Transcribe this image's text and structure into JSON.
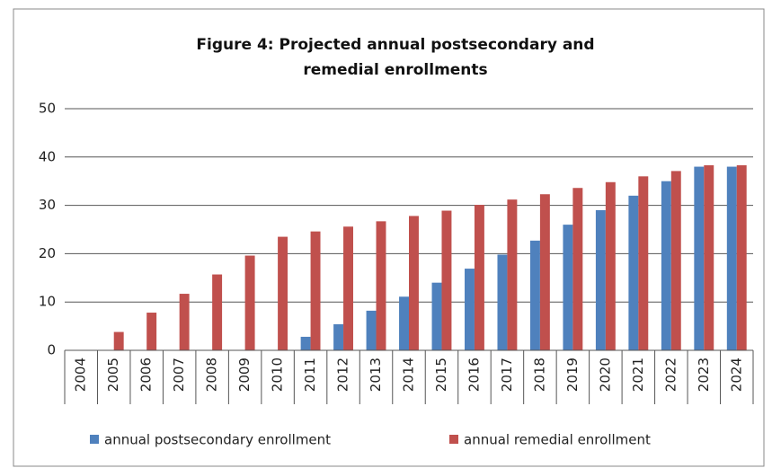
{
  "chart_data": {
    "type": "bar",
    "title": "Figure 4: Projected annual postsecondary and remedial enrollments",
    "categories": [
      "2004",
      "2005",
      "2006",
      "2007",
      "2008",
      "2009",
      "2010",
      "2011",
      "2012",
      "2013",
      "2014",
      "2015",
      "2016",
      "2017",
      "2018",
      "2019",
      "2020",
      "2021",
      "2022",
      "2023",
      "2024"
    ],
    "series": [
      {
        "name": "annual postsecondary enrollment",
        "color": "#4f81bd",
        "values": [
          0,
          0,
          0,
          0,
          0,
          0,
          0,
          2.8,
          5.4,
          8.2,
          11.1,
          14.0,
          16.9,
          19.8,
          22.7,
          26.0,
          29.0,
          32.0,
          35.0,
          38.0,
          38.0
        ]
      },
      {
        "name": "annual remedial enrollment",
        "color": "#c0504d",
        "values": [
          0,
          3.8,
          7.8,
          11.7,
          15.7,
          19.6,
          23.5,
          24.6,
          25.6,
          26.7,
          27.8,
          28.9,
          30.1,
          31.2,
          32.3,
          33.6,
          34.8,
          36.0,
          37.1,
          38.3,
          38.3
        ]
      }
    ],
    "ylim": [
      0,
      50
    ],
    "yticks": [
      0,
      10,
      20,
      30,
      40,
      50
    ],
    "grid": true,
    "legend": "bottom"
  }
}
